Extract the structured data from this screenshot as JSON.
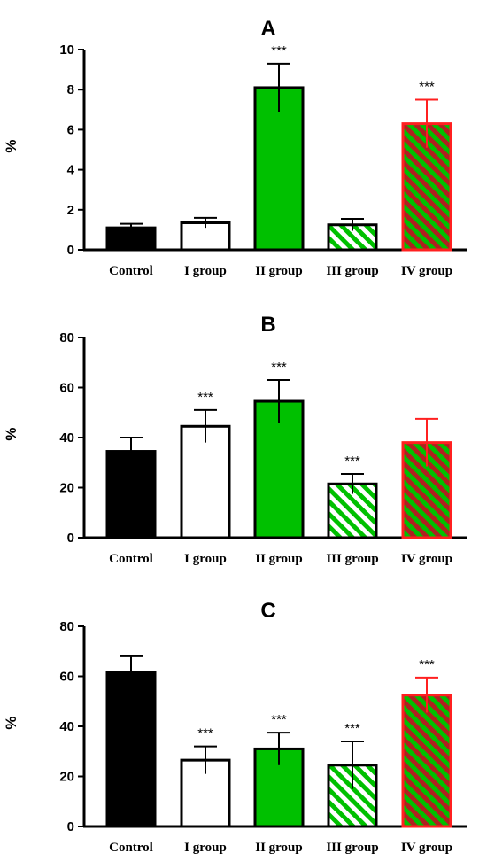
{
  "chart_data": [
    {
      "type": "bar",
      "title": "A",
      "ylabel": "%",
      "ylim": [
        0,
        10
      ],
      "yticks": [
        "0",
        "2",
        "4",
        "6",
        "8",
        "10"
      ],
      "categories": [
        "Control",
        "I group",
        "II group",
        "III group",
        "IV group"
      ],
      "values": [
        1.1,
        1.35,
        8.1,
        1.25,
        6.3
      ],
      "errors": [
        0.2,
        0.25,
        1.2,
        0.3,
        1.2
      ],
      "annotations": [
        "",
        "",
        "***",
        "",
        "***"
      ]
    },
    {
      "type": "bar",
      "title": "B",
      "ylabel": "%",
      "ylim": [
        0,
        80
      ],
      "yticks": [
        "0",
        "20",
        "40",
        "60",
        "80"
      ],
      "categories": [
        "Control",
        "I group",
        "II group",
        "III group",
        "IV group"
      ],
      "values": [
        34.5,
        44.5,
        54.5,
        21.5,
        38
      ],
      "errors": [
        5.5,
        6.5,
        8.5,
        4,
        9.5
      ],
      "annotations": [
        "",
        "***",
        "***",
        "***",
        ""
      ]
    },
    {
      "type": "bar",
      "title": "C",
      "ylabel": "%",
      "ylim": [
        0,
        80
      ],
      "yticks": [
        "0",
        "20",
        "40",
        "60",
        "80"
      ],
      "categories": [
        "Control",
        "I group",
        "II group",
        "III group",
        "IV group"
      ],
      "values": [
        61.5,
        26.5,
        31,
        24.5,
        52.5
      ],
      "errors": [
        6.5,
        5.5,
        6.5,
        9.5,
        7
      ],
      "annotations": [
        "",
        "***",
        "***",
        "***",
        "***"
      ]
    }
  ],
  "bar_styles": [
    {
      "fill": "#000000",
      "stroke": "#000000",
      "pattern": "none"
    },
    {
      "fill": "#ffffff",
      "stroke": "#000000",
      "pattern": "none"
    },
    {
      "fill": "#00c000",
      "stroke": "#000000",
      "pattern": "none"
    },
    {
      "fill": "#ffffff",
      "stroke": "#000000",
      "pattern": "stripes",
      "stripe_color": "#00c000"
    },
    {
      "fill": "#00c000",
      "stroke": "#ff2020",
      "pattern": "stripes",
      "stripe_color": "#b02020"
    }
  ]
}
